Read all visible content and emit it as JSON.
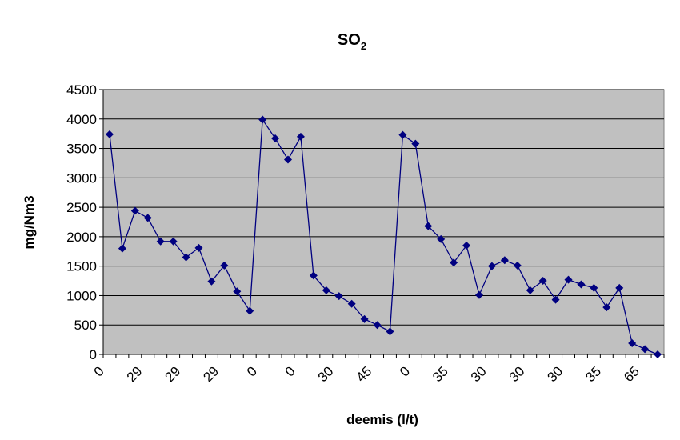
{
  "chart_data": {
    "type": "line",
    "title": "SO",
    "title_subscript": "2",
    "x_label": "deemis (l/t)",
    "y_label": "mg/Nm3",
    "categories": [
      "0",
      null,
      null,
      "29",
      null,
      null,
      "29",
      null,
      null,
      "29",
      null,
      null,
      "0",
      null,
      null,
      "0",
      null,
      null,
      "30",
      null,
      null,
      "45",
      null,
      null,
      "0",
      null,
      null,
      "35",
      null,
      null,
      "30",
      null,
      null,
      "30",
      null,
      null,
      "30",
      null,
      null,
      "35",
      null,
      null,
      "65",
      null
    ],
    "series": [
      {
        "name": "SO2",
        "color": "#000080",
        "values": [
          3740,
          1800,
          2440,
          2320,
          1920,
          1920,
          1650,
          1810,
          1240,
          1510,
          1070,
          740,
          3990,
          3670,
          3310,
          3700,
          1340,
          1090,
          990,
          860,
          600,
          500,
          390,
          3730,
          3580,
          2180,
          1960,
          1560,
          1850,
          1010,
          1500,
          1600,
          1510,
          1090,
          1250,
          930,
          1270,
          1190,
          1130,
          800,
          1130,
          190,
          90,
          0
        ]
      }
    ],
    "ylim": [
      0,
      4500
    ],
    "yticks": [
      0,
      500,
      1000,
      1500,
      2000,
      2500,
      3000,
      3500,
      4000,
      4500
    ],
    "grid": true,
    "plot_background": "#c0c0c0"
  }
}
